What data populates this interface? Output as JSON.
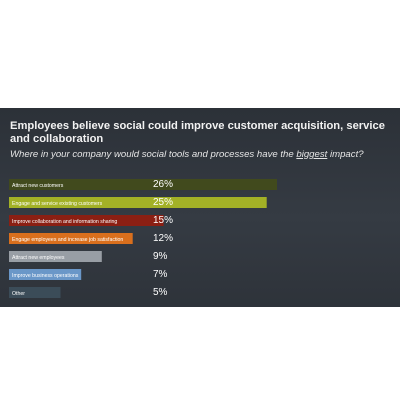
{
  "title": "Employees believe social could improve customer acquisition, service and collaboration",
  "subtitle": {
    "before": "Where in your company would social tools and processes have the ",
    "emphasis": "biggest",
    "after": " impact?"
  },
  "chart_data": {
    "type": "bar",
    "orientation": "horizontal",
    "categories": [
      "Attract new customers",
      "Engage and service existing customers",
      "Improve collaboration and information sharing",
      "Engage employees and increase job satisfaction",
      "Attract new employees",
      "Improve business operations",
      "Other"
    ],
    "values": [
      26,
      25,
      15,
      12,
      9,
      7,
      5
    ],
    "value_labels": [
      "26%",
      "25%",
      "15%",
      "12%",
      "9%",
      "7%",
      "5%"
    ],
    "unit": "%",
    "colors": [
      "#414a1d",
      "#a3b126",
      "#8b1f13",
      "#d96f1d",
      "#989ea5",
      "#6a97c8",
      "#3b4c58"
    ],
    "grid": false
  }
}
